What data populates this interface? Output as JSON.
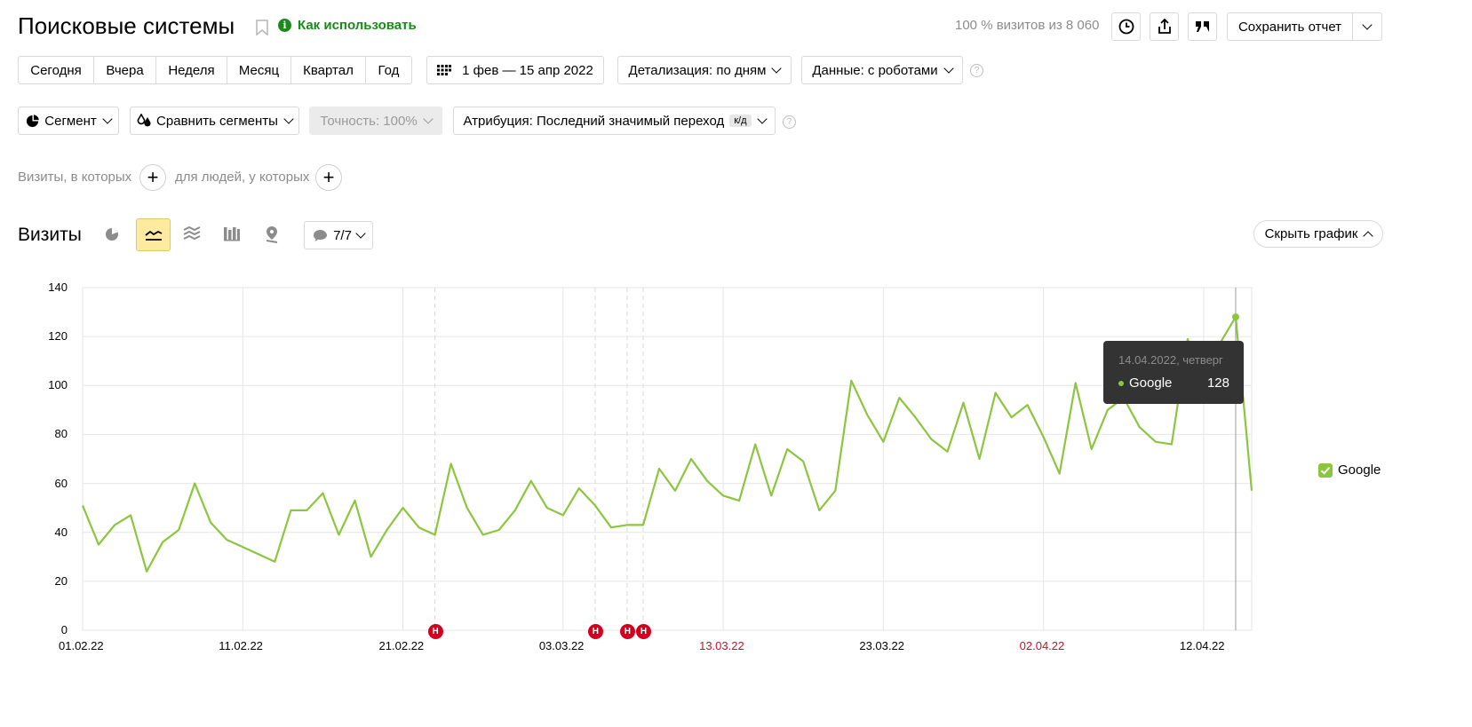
{
  "header": {
    "title": "Поисковые системы",
    "how_to_use": "Как использовать",
    "visits_share": "100 % визитов из 8 060",
    "save_report": "Сохранить отчет"
  },
  "periods": [
    "Сегодня",
    "Вчера",
    "Неделя",
    "Месяц",
    "Квартал",
    "Год"
  ],
  "filters": {
    "date_range": "1 фев — 15 апр 2022",
    "detail": "Детализация: по дням",
    "data": "Данные: с роботами",
    "segment": "Сегмент",
    "compare": "Сравнить сегменты",
    "accuracy": "Точность: 100%",
    "attribution": "Атрибуция: Последний значимый переход",
    "attribution_badge": "к/д",
    "visits_in_which": "Визиты, в которых",
    "for_people": "для людей, у которых"
  },
  "chart_header": {
    "title": "Визиты",
    "notes_count": "7/7",
    "hide_chart": "Скрыть график"
  },
  "colors": {
    "line": "#8cc63f",
    "note_marker": "#d1001f",
    "tooltip_bg": "#333333",
    "active_chart_btn": "#ffeba0",
    "weekend_label": "#c8102e"
  },
  "tooltip": {
    "date": "14.04.2022, четверг",
    "series": "Google",
    "value": "128"
  },
  "legend": {
    "label": "Google"
  },
  "note_marker_label": "Н",
  "chart_data": {
    "type": "line",
    "title": "",
    "xlabel": "",
    "ylabel": "",
    "ylim": [
      0,
      140
    ],
    "yticks": [
      "0",
      "20",
      "40",
      "60",
      "80",
      "100",
      "120",
      "140"
    ],
    "xtick_labels": [
      "01.02.22",
      "11.02.22",
      "21.02.22",
      "03.03.22",
      "13.03.22",
      "23.03.22",
      "02.04.22",
      "12.04.22"
    ],
    "x_start": "2022-02-01",
    "x_end": "2022-04-15",
    "note_dates": [
      "2022-02-23",
      "2022-03-05",
      "2022-03-07",
      "2022-03-08"
    ],
    "series": [
      {
        "name": "Google",
        "values": [
          51,
          35,
          43,
          47,
          24,
          36,
          41,
          60,
          44,
          37,
          34,
          31,
          28,
          49,
          49,
          56,
          39,
          53,
          30,
          41,
          50,
          42,
          39,
          68,
          50,
          39,
          41,
          49,
          61,
          50,
          47,
          58,
          51,
          42,
          43,
          43,
          66,
          57,
          70,
          61,
          55,
          53,
          76,
          55,
          74,
          69,
          49,
          57,
          102,
          88,
          77,
          95,
          87,
          78,
          73,
          93,
          70,
          97,
          87,
          92,
          79,
          64,
          101,
          74,
          90,
          95,
          83,
          77,
          76,
          119,
          100,
          117,
          128,
          57
        ]
      }
    ]
  }
}
